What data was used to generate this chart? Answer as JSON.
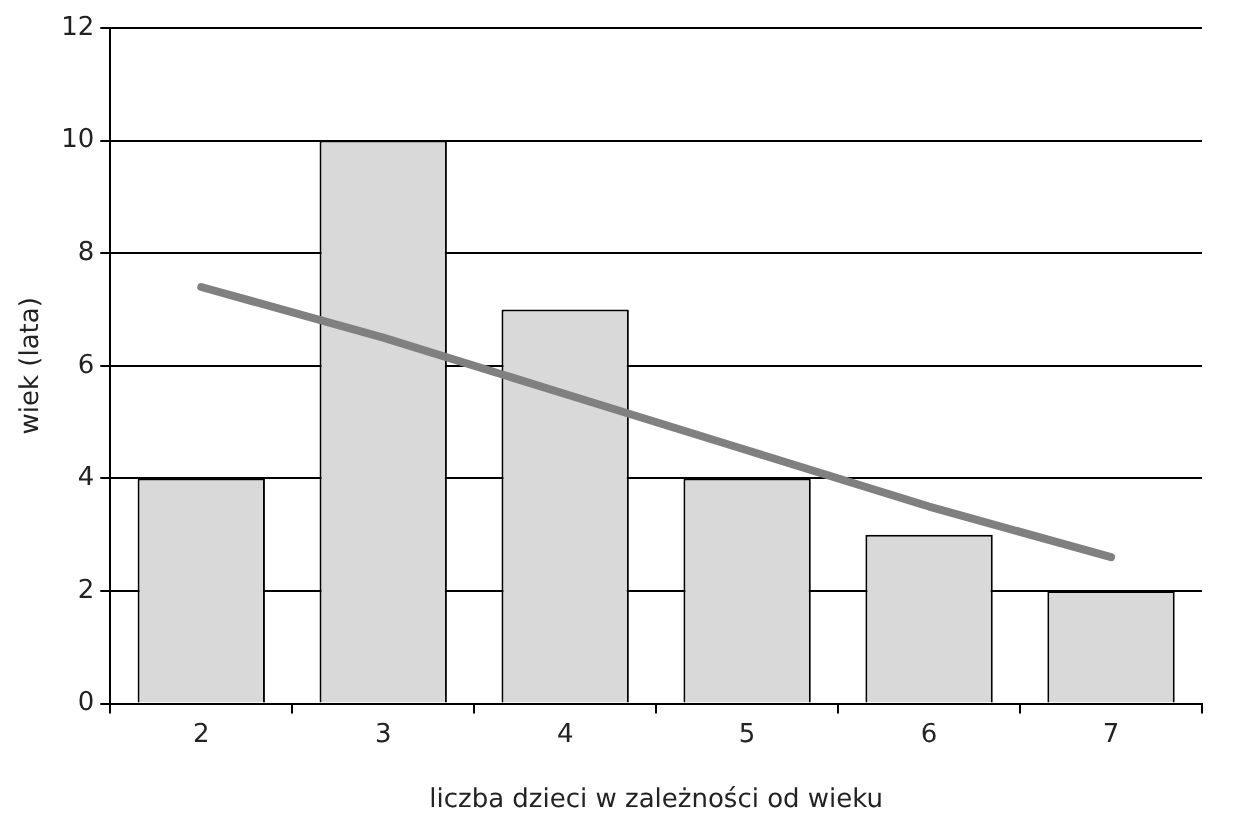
{
  "chart_data": {
    "type": "bar",
    "xlabel": "liczba dzieci w zależności od wieku",
    "ylabel": "wiek (lata)",
    "categories": [
      "2",
      "3",
      "4",
      "5",
      "6",
      "7"
    ],
    "series": [
      {
        "color": "#d9d9d9",
        "values": [
          4,
          10,
          7,
          4,
          3,
          2
        ]
      },
      {
        "type": "line",
        "color": "#808080",
        "values": [
          7.4,
          6.5,
          5.5,
          4.5,
          3.5,
          2.6
        ]
      }
    ],
    "ylim": [
      0,
      12
    ],
    "yticks": [
      0,
      2,
      4,
      6,
      8,
      10,
      12
    ],
    "grid": "y",
    "legend": false,
    "marker": "none",
    "line_style": "solid"
  }
}
